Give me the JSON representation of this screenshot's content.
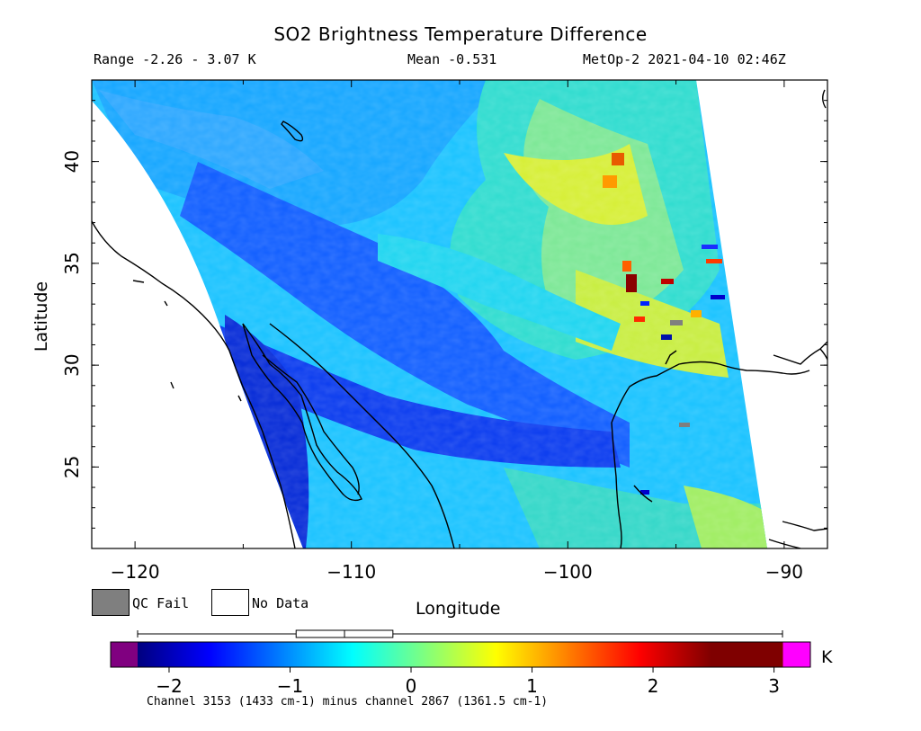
{
  "title": "SO2 Brightness Temperature Difference",
  "header": {
    "range": "Range -2.26 - 3.07 K",
    "mean": "Mean -0.531",
    "satellite_time": "MetOp-2 2021-04-10 02:46Z"
  },
  "axes": {
    "xlabel": "Longitude",
    "ylabel": "Latitude",
    "x_ticks": [
      "-120",
      "-110",
      "-100",
      "-90"
    ],
    "y_ticks": [
      "40",
      "35",
      "30",
      "25"
    ],
    "xlim": [
      -122,
      -88
    ],
    "ylim": [
      21,
      44
    ]
  },
  "legend": {
    "qc_fail": "QC Fail",
    "no_data": "No Data",
    "qc_fail_color": "#7f7f7f",
    "no_data_color": "#ffffff"
  },
  "colorbar": {
    "unit": "K",
    "ticks": [
      "-2",
      "-1",
      "0",
      "1",
      "2",
      "3"
    ],
    "tick_values": [
      -2,
      -1,
      0,
      1,
      2,
      3
    ],
    "range": [
      -2.26,
      3.07
    ],
    "under_color": "#800080",
    "over_color": "#ff00ff",
    "colormap": [
      "#00007f",
      "#0000ff",
      "#007fff",
      "#00ffff",
      "#7fff7f",
      "#ffff00",
      "#ff7f00",
      "#ff0000",
      "#7f0000"
    ],
    "boxplot": {
      "min": -2.26,
      "q1": -0.95,
      "median": -0.55,
      "q3": -0.15,
      "max": 3.07
    }
  },
  "footnote": "Channel 3153 (1433 cm-1) minus channel 2867 (1361.5 cm-1)"
}
